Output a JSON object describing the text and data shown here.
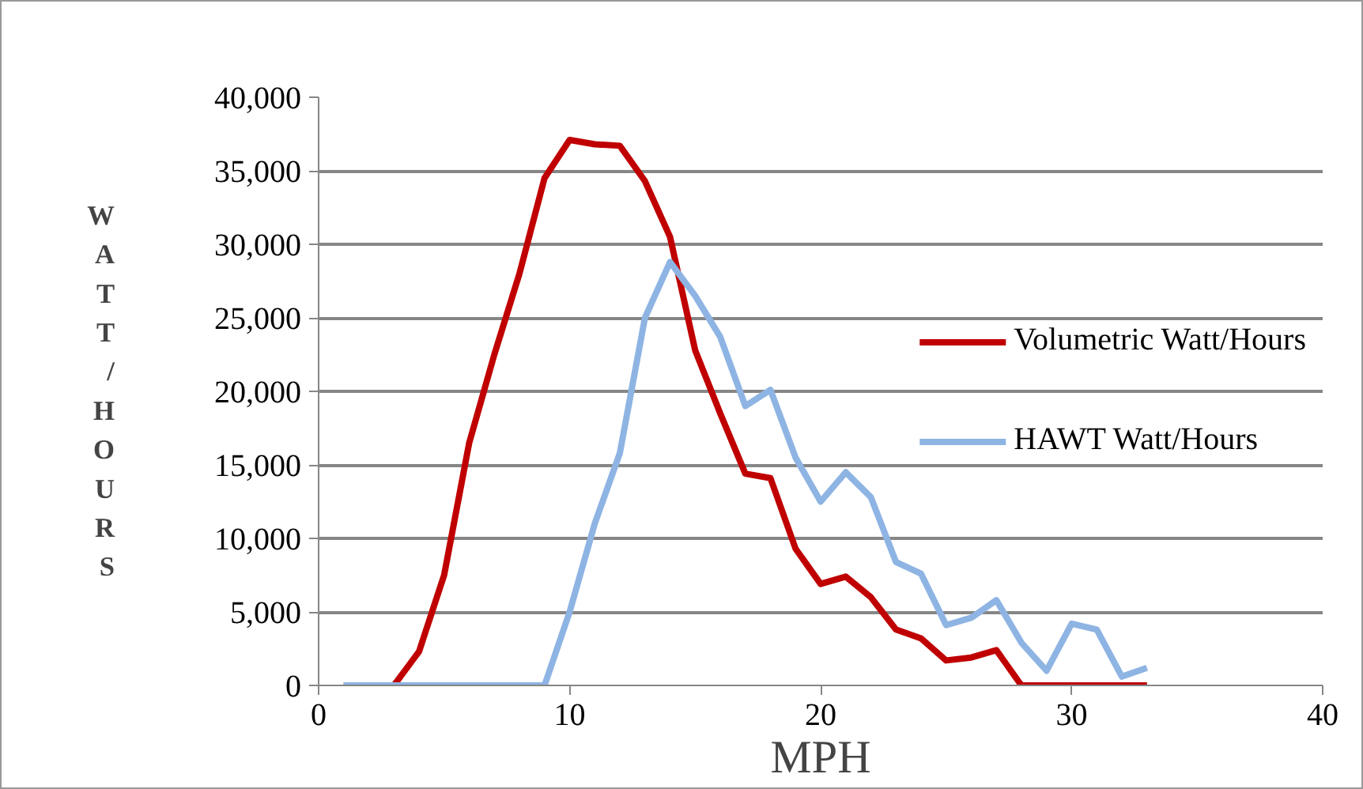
{
  "chart_data": {
    "type": "line",
    "xlabel": "MPH",
    "ylabel": "WATT/HOURS",
    "x": [
      1,
      2,
      3,
      4,
      5,
      6,
      7,
      8,
      9,
      10,
      11,
      12,
      13,
      14,
      15,
      16,
      17,
      18,
      19,
      20,
      21,
      22,
      23,
      24,
      25,
      26,
      27,
      28,
      29,
      30,
      31,
      32,
      33
    ],
    "series": [
      {
        "name": "Volumetric Watt/Hours",
        "color": "#c00000",
        "values": [
          0,
          0,
          0,
          2300,
          7500,
          16500,
          22500,
          28000,
          34500,
          37100,
          36800,
          36700,
          34300,
          30500,
          22800,
          18500,
          14400,
          14100,
          9300,
          6900,
          7400,
          6000,
          3800,
          3200,
          1700,
          1900,
          2400,
          0,
          0,
          0,
          0,
          0,
          0
        ]
      },
      {
        "name": "HAWT Watt/Hours",
        "color": "#8eb4e3",
        "values": [
          0,
          0,
          0,
          0,
          0,
          0,
          0,
          0,
          0,
          5000,
          11000,
          15800,
          25000,
          28800,
          26500,
          23700,
          19000,
          20100,
          15500,
          12500,
          14500,
          12800,
          8400,
          7600,
          4100,
          4600,
          5800,
          2900,
          1000,
          4200,
          3800,
          600,
          1200
        ]
      }
    ],
    "xlim": [
      0,
      40
    ],
    "xticks": [
      0,
      10,
      20,
      30,
      40
    ],
    "ylim": [
      0,
      40000
    ],
    "yticks": [
      0,
      {
        "value": 5000,
        "label": "5,000"
      },
      {
        "value": 10000,
        "label": "10,000"
      },
      {
        "value": 15000,
        "label": "15,000"
      },
      {
        "value": 20000,
        "label": "20,000"
      },
      {
        "value": 25000,
        "label": "25,000"
      },
      {
        "value": 30000,
        "label": "30,000"
      },
      {
        "value": 35000,
        "label": "35,000"
      },
      {
        "value": 40000,
        "label": "40,000"
      }
    ],
    "grid": "y",
    "legend": "right",
    "line_style": "solid",
    "marker": "none"
  }
}
